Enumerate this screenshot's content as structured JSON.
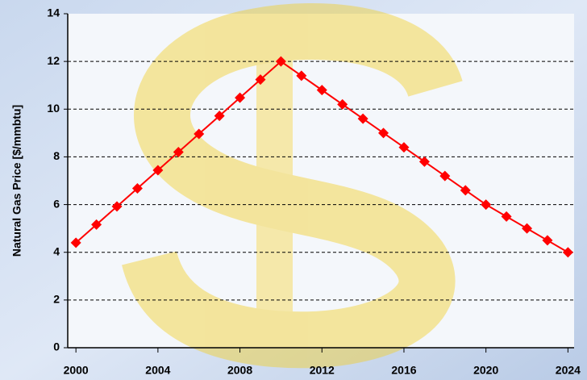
{
  "chart_data": {
    "type": "line",
    "y_label": "Natural Gas Price [$/mmbtu]",
    "x": [
      2000,
      2001,
      2002,
      2003,
      2004,
      2005,
      2006,
      2007,
      2008,
      2009,
      2010,
      2011,
      2012,
      2013,
      2014,
      2015,
      2016,
      2017,
      2018,
      2019,
      2020,
      2021,
      2022,
      2023,
      2024
    ],
    "values": [
      4.4,
      5.16,
      5.92,
      6.68,
      7.44,
      8.2,
      8.96,
      9.72,
      10.48,
      11.24,
      12,
      11.4,
      10.8,
      10.2,
      9.6,
      9.0,
      8.4,
      7.8,
      7.2,
      6.6,
      6.0,
      5.5,
      5.0,
      4.5,
      4.0
    ],
    "color": "#ff0000",
    "xlim": [
      1999.6,
      2024.3
    ],
    "xticks": [
      2000,
      2004,
      2008,
      2012,
      2016,
      2020,
      2024
    ],
    "ylim": [
      0,
      14
    ],
    "yticks": [
      0,
      2,
      4,
      6,
      8,
      10,
      12,
      14
    ],
    "grid": true
  }
}
